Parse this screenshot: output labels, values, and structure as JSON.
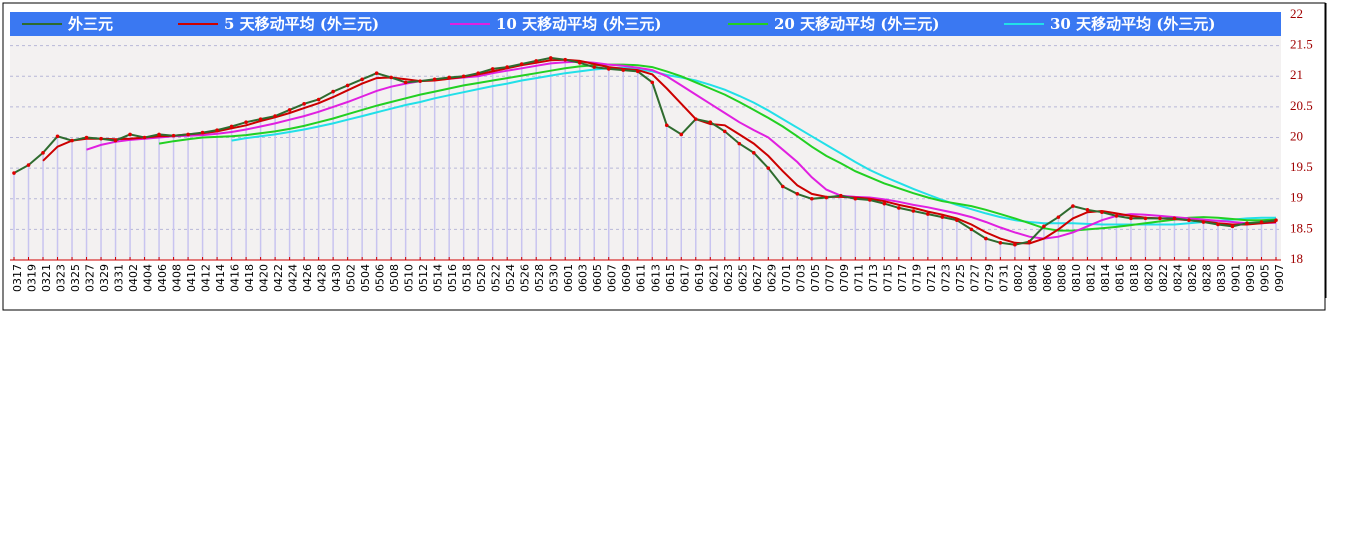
{
  "chart_data": {
    "type": "line",
    "categories": [
      "0317",
      "0319",
      "0321",
      "0323",
      "0325",
      "0327",
      "0329",
      "0331",
      "0402",
      "0404",
      "0406",
      "0408",
      "0410",
      "0412",
      "0414",
      "0416",
      "0418",
      "0420",
      "0422",
      "0424",
      "0426",
      "0428",
      "0430",
      "0502",
      "0504",
      "0506",
      "0508",
      "0510",
      "0512",
      "0514",
      "0516",
      "0518",
      "0520",
      "0522",
      "0524",
      "0526",
      "0528",
      "0530",
      "0601",
      "0603",
      "0605",
      "0607",
      "0609",
      "0611",
      "0613",
      "0615",
      "0617",
      "0619",
      "0621",
      "0623",
      "0625",
      "0627",
      "0629",
      "0701",
      "0703",
      "0705",
      "0707",
      "0709",
      "0711",
      "0713",
      "0715",
      "0717",
      "0719",
      "0721",
      "0723",
      "0725",
      "0727",
      "0729",
      "0731",
      "0802",
      "0804",
      "0806",
      "0808",
      "0810",
      "0812",
      "0814",
      "0816",
      "0818",
      "0820",
      "0822",
      "0824",
      "0826",
      "0828",
      "0830",
      "0901",
      "0903",
      "0905",
      "0907"
    ],
    "series": [
      {
        "name": "外三元",
        "color": "#2e6b2e",
        "marker_color": "#e00000",
        "values": [
          19.42,
          19.55,
          19.75,
          20.02,
          19.95,
          20.0,
          19.98,
          19.95,
          20.05,
          20.0,
          20.05,
          20.03,
          20.05,
          20.08,
          20.12,
          20.18,
          20.25,
          20.3,
          20.35,
          20.45,
          20.55,
          20.62,
          20.75,
          20.85,
          20.95,
          21.05,
          20.98,
          20.9,
          20.92,
          20.95,
          20.98,
          21.0,
          21.05,
          21.12,
          21.15,
          21.2,
          21.25,
          21.3,
          21.27,
          21.22,
          21.15,
          21.12,
          21.1,
          21.08,
          20.9,
          20.2,
          20.05,
          20.3,
          20.25,
          20.1,
          19.9,
          19.75,
          19.5,
          19.2,
          19.08,
          19.0,
          19.02,
          19.05,
          19.0,
          18.98,
          18.92,
          18.85,
          18.8,
          18.75,
          18.7,
          18.65,
          18.5,
          18.35,
          18.28,
          18.25,
          18.3,
          18.55,
          18.7,
          18.88,
          18.82,
          18.78,
          18.72,
          18.68,
          18.68,
          18.68,
          18.68,
          18.65,
          18.62,
          18.58,
          18.55,
          18.6,
          18.62,
          18.65
        ]
      },
      {
        "name": "5 天移动平均 (外三元)",
        "color": "#cc0000",
        "values": [
          null,
          null,
          19.62,
          19.85,
          19.95,
          19.98,
          19.98,
          19.97,
          19.98,
          20.0,
          20.02,
          20.03,
          20.05,
          20.07,
          20.1,
          20.15,
          20.2,
          20.27,
          20.33,
          20.4,
          20.48,
          20.56,
          20.66,
          20.77,
          20.88,
          20.97,
          20.98,
          20.95,
          20.92,
          20.93,
          20.96,
          20.99,
          21.03,
          21.08,
          21.13,
          21.18,
          21.22,
          21.26,
          21.27,
          21.25,
          21.2,
          21.15,
          21.12,
          21.1,
          21.03,
          20.8,
          20.55,
          20.3,
          20.22,
          20.2,
          20.05,
          19.9,
          19.7,
          19.45,
          19.22,
          19.08,
          19.03,
          19.03,
          19.02,
          19.0,
          18.96,
          18.9,
          18.85,
          18.79,
          18.74,
          18.68,
          18.58,
          18.45,
          18.35,
          18.28,
          18.27,
          18.35,
          18.5,
          18.68,
          18.78,
          18.8,
          18.76,
          18.72,
          18.69,
          18.68,
          18.67,
          18.65,
          18.63,
          18.6,
          18.58,
          18.58,
          18.6,
          18.62
        ]
      },
      {
        "name": "10 天移动平均 (外三元)",
        "color": "#e020e0",
        "values": [
          null,
          null,
          null,
          null,
          null,
          19.8,
          19.88,
          19.93,
          19.96,
          19.98,
          20.0,
          20.02,
          20.03,
          20.04,
          20.06,
          20.09,
          20.13,
          20.18,
          20.23,
          20.29,
          20.35,
          20.42,
          20.5,
          20.58,
          20.67,
          20.76,
          20.83,
          20.88,
          20.92,
          20.94,
          20.96,
          20.98,
          21.0,
          21.05,
          21.09,
          21.13,
          21.17,
          21.21,
          21.23,
          21.24,
          21.22,
          21.19,
          21.17,
          21.14,
          21.1,
          21.0,
          20.85,
          20.7,
          20.55,
          20.4,
          20.25,
          20.12,
          20.0,
          19.8,
          19.6,
          19.35,
          19.15,
          19.05,
          19.03,
          19.02,
          18.99,
          18.95,
          18.9,
          18.86,
          18.81,
          18.76,
          18.7,
          18.62,
          18.53,
          18.45,
          18.38,
          18.35,
          18.38,
          18.45,
          18.55,
          18.65,
          18.72,
          18.75,
          18.74,
          18.72,
          18.7,
          18.68,
          18.66,
          18.64,
          18.62,
          18.6,
          18.6,
          18.61
        ]
      },
      {
        "name": "20 天移动平均 (外三元)",
        "color": "#22d022",
        "values": [
          null,
          null,
          null,
          null,
          null,
          null,
          null,
          null,
          null,
          null,
          19.9,
          19.94,
          19.97,
          20.0,
          20.01,
          20.02,
          20.04,
          20.07,
          20.1,
          20.14,
          20.19,
          20.25,
          20.31,
          20.38,
          20.45,
          20.52,
          20.58,
          20.64,
          20.7,
          20.75,
          20.8,
          20.85,
          20.89,
          20.93,
          20.97,
          21.01,
          21.05,
          21.09,
          21.13,
          21.16,
          21.18,
          21.19,
          21.19,
          21.18,
          21.15,
          21.08,
          21.0,
          20.9,
          20.8,
          20.7,
          20.58,
          20.45,
          20.32,
          20.18,
          20.02,
          19.85,
          19.7,
          19.58,
          19.45,
          19.35,
          19.25,
          19.17,
          19.09,
          19.02,
          18.96,
          18.92,
          18.88,
          18.82,
          18.75,
          18.68,
          18.6,
          18.52,
          18.48,
          18.48,
          18.5,
          18.52,
          18.54,
          18.57,
          18.6,
          18.63,
          18.66,
          18.69,
          18.7,
          18.69,
          18.67,
          18.65,
          18.65,
          18.66
        ]
      },
      {
        "name": "30 天移动平均 (外三元)",
        "color": "#22e0e8",
        "values": [
          null,
          null,
          null,
          null,
          null,
          null,
          null,
          null,
          null,
          null,
          null,
          null,
          null,
          null,
          null,
          19.95,
          19.99,
          20.02,
          20.05,
          20.09,
          20.13,
          20.18,
          20.23,
          20.29,
          20.35,
          20.41,
          20.47,
          20.53,
          20.58,
          20.64,
          20.69,
          20.74,
          20.79,
          20.84,
          20.88,
          20.93,
          20.97,
          21.01,
          21.05,
          21.08,
          21.11,
          21.13,
          21.14,
          21.12,
          21.08,
          21.02,
          20.98,
          20.93,
          20.86,
          20.78,
          20.68,
          20.57,
          20.44,
          20.3,
          20.16,
          20.02,
          19.88,
          19.74,
          19.6,
          19.47,
          19.36,
          19.26,
          19.16,
          19.07,
          18.98,
          18.9,
          18.83,
          18.76,
          18.7,
          18.65,
          18.62,
          18.6,
          18.6,
          18.6,
          18.59,
          18.58,
          18.58,
          18.58,
          18.58,
          18.58,
          18.58,
          18.6,
          18.62,
          18.64,
          18.66,
          18.68,
          18.69,
          18.69
        ]
      }
    ],
    "ylim": [
      18,
      22
    ],
    "yticks": [
      18,
      18.5,
      19,
      19.5,
      20,
      20.5,
      21,
      21.5,
      22
    ],
    "grid": true
  }
}
